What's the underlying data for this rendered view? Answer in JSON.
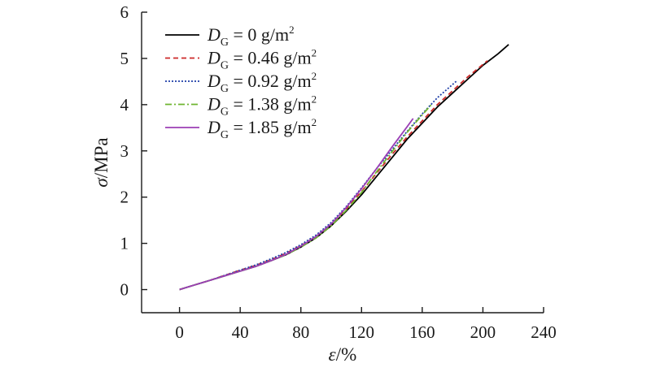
{
  "chart_data": {
    "type": "line",
    "xlabel": {
      "symbol": "ε",
      "unit": "/%"
    },
    "ylabel": {
      "symbol": "σ",
      "unit": "/MPa"
    },
    "xlim": [
      -25,
      240
    ],
    "ylim": [
      -0.5,
      6
    ],
    "xticks": [
      0,
      40,
      80,
      120,
      160,
      200,
      240
    ],
    "yticks": [
      0,
      1,
      2,
      3,
      4,
      5,
      6
    ],
    "legend_position": "top-left",
    "series": [
      {
        "name": "DG = 0 g/m2",
        "label_parts": {
          "symbol": "D",
          "sub": "G",
          "value": " = 0 g/m",
          "sup": "2"
        },
        "color": "#000000",
        "dash": "",
        "points": [
          [
            0,
            0
          ],
          [
            10,
            0.1
          ],
          [
            20,
            0.2
          ],
          [
            30,
            0.3
          ],
          [
            40,
            0.4
          ],
          [
            50,
            0.5
          ],
          [
            60,
            0.62
          ],
          [
            70,
            0.75
          ],
          [
            80,
            0.92
          ],
          [
            90,
            1.12
          ],
          [
            100,
            1.38
          ],
          [
            110,
            1.7
          ],
          [
            120,
            2.05
          ],
          [
            130,
            2.45
          ],
          [
            140,
            2.85
          ],
          [
            150,
            3.25
          ],
          [
            160,
            3.6
          ],
          [
            170,
            3.95
          ],
          [
            180,
            4.25
          ],
          [
            190,
            4.55
          ],
          [
            200,
            4.85
          ],
          [
            210,
            5.1
          ],
          [
            217,
            5.3
          ]
        ]
      },
      {
        "name": "DG = 0.46 g/m2",
        "label_parts": {
          "symbol": "D",
          "sub": "G",
          "value": " = 0.46 g/m",
          "sup": "2"
        },
        "color": "#cc2a2a",
        "dash": "6,4",
        "points": [
          [
            0,
            0
          ],
          [
            10,
            0.1
          ],
          [
            20,
            0.2
          ],
          [
            30,
            0.31
          ],
          [
            40,
            0.42
          ],
          [
            50,
            0.52
          ],
          [
            60,
            0.64
          ],
          [
            70,
            0.78
          ],
          [
            80,
            0.95
          ],
          [
            90,
            1.15
          ],
          [
            100,
            1.42
          ],
          [
            110,
            1.75
          ],
          [
            120,
            2.12
          ],
          [
            130,
            2.52
          ],
          [
            140,
            2.92
          ],
          [
            150,
            3.3
          ],
          [
            160,
            3.65
          ],
          [
            170,
            4.0
          ],
          [
            180,
            4.3
          ],
          [
            190,
            4.6
          ],
          [
            203,
            4.95
          ]
        ]
      },
      {
        "name": "DG = 0.92 g/m2",
        "label_parts": {
          "symbol": "D",
          "sub": "G",
          "value": " = 0.92 g/m",
          "sup": "2"
        },
        "color": "#1f3fa8",
        "dash": "2,2",
        "points": [
          [
            0,
            0
          ],
          [
            10,
            0.1
          ],
          [
            20,
            0.2
          ],
          [
            30,
            0.31
          ],
          [
            40,
            0.42
          ],
          [
            50,
            0.53
          ],
          [
            60,
            0.66
          ],
          [
            70,
            0.8
          ],
          [
            80,
            0.97
          ],
          [
            90,
            1.18
          ],
          [
            100,
            1.45
          ],
          [
            110,
            1.8
          ],
          [
            120,
            2.2
          ],
          [
            130,
            2.62
          ],
          [
            140,
            3.02
          ],
          [
            150,
            3.42
          ],
          [
            160,
            3.8
          ],
          [
            170,
            4.15
          ],
          [
            183,
            4.52
          ]
        ]
      },
      {
        "name": "DG = 1.38 g/m2",
        "label_parts": {
          "symbol": "D",
          "sub": "G",
          "value": " = 1.38 g/m",
          "sup": "2"
        },
        "color": "#6fb530",
        "dash": "8,3,2,3",
        "points": [
          [
            0,
            0
          ],
          [
            10,
            0.1
          ],
          [
            20,
            0.2
          ],
          [
            30,
            0.3
          ],
          [
            40,
            0.4
          ],
          [
            50,
            0.5
          ],
          [
            60,
            0.62
          ],
          [
            70,
            0.75
          ],
          [
            80,
            0.92
          ],
          [
            90,
            1.12
          ],
          [
            100,
            1.38
          ],
          [
            110,
            1.72
          ],
          [
            120,
            2.1
          ],
          [
            130,
            2.55
          ],
          [
            140,
            2.98
          ],
          [
            150,
            3.4
          ],
          [
            160,
            3.78
          ],
          [
            166,
            4.0
          ]
        ]
      },
      {
        "name": "DG = 1.85 g/m2",
        "label_parts": {
          "symbol": "D",
          "sub": "G",
          "value": " = 1.85 g/m",
          "sup": "2"
        },
        "color": "#9b3fb5",
        "dash": "",
        "points": [
          [
            0,
            0
          ],
          [
            10,
            0.1
          ],
          [
            20,
            0.2
          ],
          [
            30,
            0.3
          ],
          [
            40,
            0.4
          ],
          [
            50,
            0.5
          ],
          [
            60,
            0.62
          ],
          [
            70,
            0.76
          ],
          [
            80,
            0.94
          ],
          [
            90,
            1.15
          ],
          [
            100,
            1.42
          ],
          [
            110,
            1.78
          ],
          [
            120,
            2.18
          ],
          [
            130,
            2.62
          ],
          [
            140,
            3.08
          ],
          [
            150,
            3.52
          ],
          [
            154,
            3.7
          ]
        ]
      }
    ]
  }
}
